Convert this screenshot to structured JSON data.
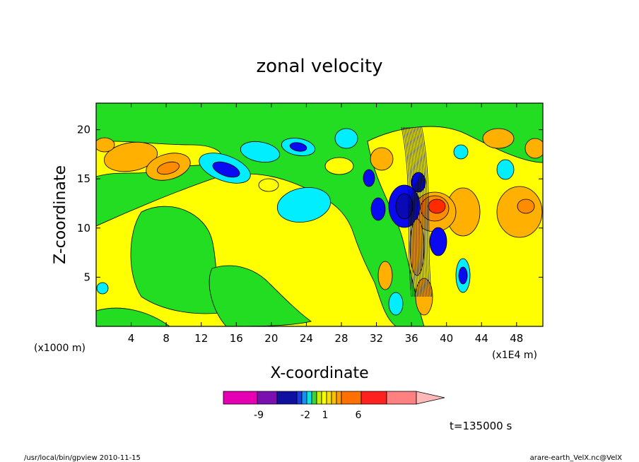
{
  "chart_data": {
    "type": "contour",
    "title": "zonal velocity",
    "xlabel": "X-coordinate",
    "ylabel": "Z-coordinate",
    "x_unit": "(x1000 m)",
    "y_unit": "(x1E4 m)",
    "xlim": [
      0,
      51
    ],
    "ylim": [
      0,
      22.7
    ],
    "x_ticks": [
      4,
      8,
      12,
      16,
      20,
      24,
      28,
      32,
      36,
      40,
      44,
      48
    ],
    "y_ticks": [
      5,
      10,
      15,
      20
    ],
    "x_ticklabels": [
      "4",
      "8",
      "12",
      "16",
      "20",
      "24",
      "28",
      "32",
      "36",
      "40",
      "44",
      "48"
    ],
    "y_ticklabels": [
      "5",
      "10",
      "15",
      "20"
    ],
    "time_label": "t=135000 s",
    "colorbar": {
      "colors": [
        "#e600b4",
        "#7a10b0",
        "#1010a0",
        "#1a3ae6",
        "#1890f0",
        "#00e8e8",
        "#40d040",
        "#c8f000",
        "#f8ff00",
        "#f8e000",
        "#f8c000",
        "#ff9a00",
        "#ff7000",
        "#ff2020",
        "#ff8080",
        "#ffb8b8"
      ],
      "labels": [
        {
          "value": -9,
          "text": "-9"
        },
        {
          "value": -2,
          "text": "-2"
        },
        {
          "value": 1,
          "text": "1"
        },
        {
          "value": 6,
          "text": "6"
        }
      ]
    },
    "field_colors": {
      "green": "#22dd22",
      "yellow": "#ffff00",
      "light_orange": "#ffb000",
      "orange": "#ff8c00",
      "red": "#ff2a00",
      "cyan": "#00eeff",
      "blue": "#0a0af0",
      "navy": "#0a0ab4",
      "pink": "#ff8080"
    }
  },
  "footer": {
    "left": "/usr/local/bin/gpview  2010-11-15",
    "right": "arare-earth_VelX.nc@VelX"
  }
}
